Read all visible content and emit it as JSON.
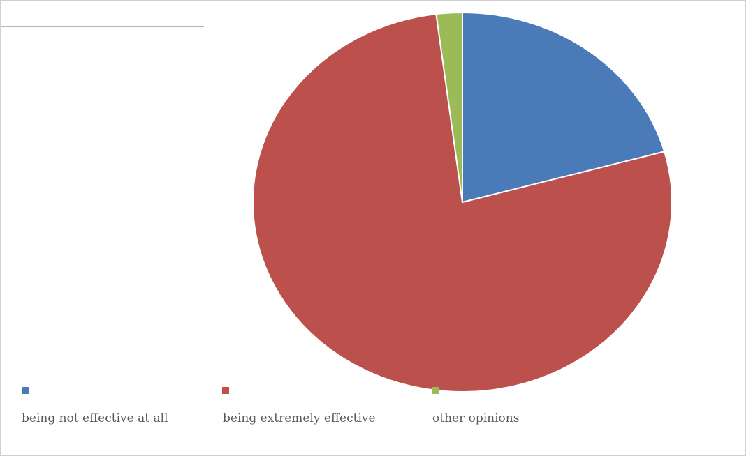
{
  "chart_data": {
    "type": "pie",
    "title": "",
    "slices": [
      {
        "name": "being not effective at all",
        "value": 20.7,
        "color": "#4a7ab7"
      },
      {
        "name": "being extremely effective",
        "value": 77.3,
        "color": "#bc504c"
      },
      {
        "name": "other opinions",
        "value": 2.0,
        "color": "#9bbb59"
      }
    ],
    "start_angle_deg": 0,
    "direction": "clockwise",
    "legend_position": "bottom",
    "slice_separator_color": "#ffffff"
  }
}
